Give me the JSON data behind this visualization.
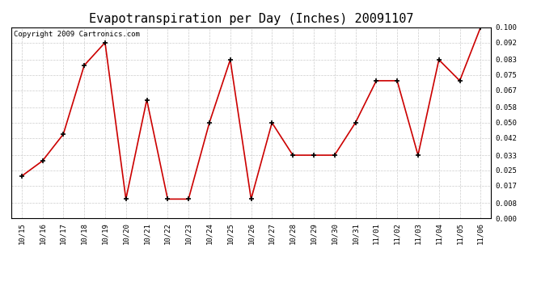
{
  "title": "Evapotranspiration per Day (Inches) 20091107",
  "copyright_text": "Copyright 2009 Cartronics.com",
  "x_labels": [
    "10/15",
    "10/16",
    "10/17",
    "10/18",
    "10/19",
    "10/20",
    "10/21",
    "10/22",
    "10/23",
    "10/24",
    "10/25",
    "10/26",
    "10/27",
    "10/28",
    "10/29",
    "10/30",
    "10/31",
    "11/01",
    "11/02",
    "11/03",
    "11/04",
    "11/05",
    "11/06"
  ],
  "y_values": [
    0.022,
    0.03,
    0.044,
    0.08,
    0.092,
    0.01,
    0.062,
    0.01,
    0.01,
    0.05,
    0.083,
    0.01,
    0.05,
    0.033,
    0.033,
    0.033,
    0.05,
    0.072,
    0.072,
    0.033,
    0.083,
    0.072,
    0.1
  ],
  "line_color": "#cc0000",
  "marker": "+",
  "marker_color": "#000000",
  "background_color": "#ffffff",
  "plot_bg_color": "#ffffff",
  "grid_color": "#cccccc",
  "grid_style": "--",
  "ylim": [
    0.0,
    0.1
  ],
  "yticks": [
    0.0,
    0.008,
    0.017,
    0.025,
    0.033,
    0.042,
    0.05,
    0.058,
    0.067,
    0.075,
    0.083,
    0.092,
    0.1
  ],
  "title_fontsize": 11,
  "copyright_fontsize": 6.5,
  "tick_fontsize": 6.5,
  "line_width": 1.2,
  "marker_size": 5,
  "marker_linewidth": 1.2
}
